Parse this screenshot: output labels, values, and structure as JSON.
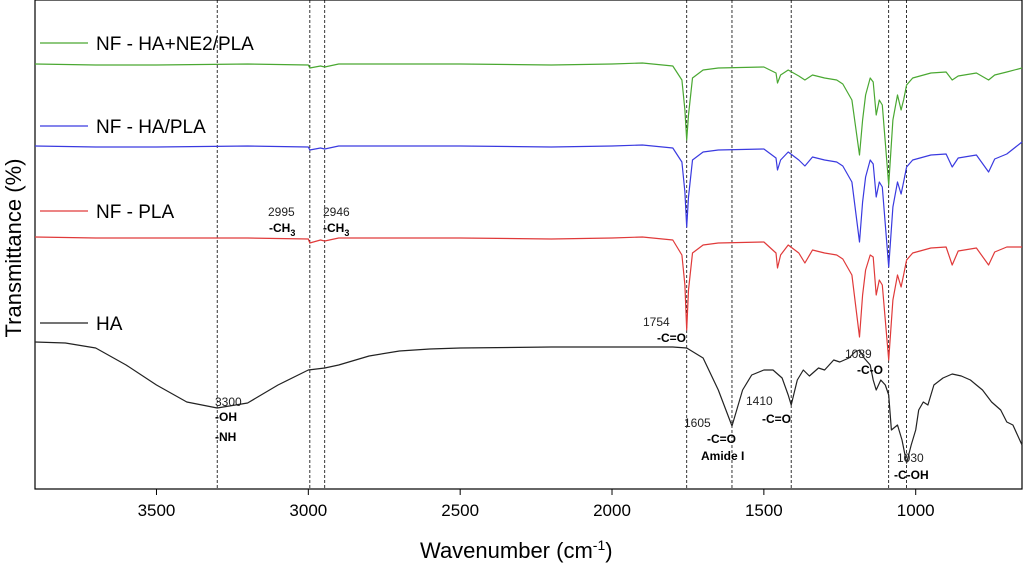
{
  "chart_data": {
    "type": "line",
    "title": "",
    "xlabel": "Wavenumber (cm",
    "xlabel_sup": "-1",
    "xlabel_end": ")",
    "ylabel": "Transmittance (%)",
    "xlim": [
      3900,
      650
    ],
    "x_ticks": [
      {
        "value": 3500,
        "label": "3500"
      },
      {
        "value": 3000,
        "label": "3000"
      },
      {
        "value": 2500,
        "label": "2500"
      },
      {
        "value": 2000,
        "label": "2000"
      },
      {
        "value": 1500,
        "label": "1500"
      },
      {
        "value": 1000,
        "label": "1000"
      }
    ],
    "reference_lines": [
      3300,
      2995,
      2946,
      1754,
      1605,
      1410,
      1089,
      1030
    ],
    "series": [
      {
        "name": "NF - HA+NE2/PLA",
        "color": "#4aa832",
        "offset": 0,
        "points": [
          [
            3900,
            64
          ],
          [
            3700,
            65
          ],
          [
            3500,
            65
          ],
          [
            3200,
            64
          ],
          [
            3000,
            65
          ],
          [
            2995,
            68
          ],
          [
            2960,
            66
          ],
          [
            2946,
            67
          ],
          [
            2900,
            64
          ],
          [
            2500,
            64
          ],
          [
            2200,
            65
          ],
          [
            2000,
            64
          ],
          [
            1900,
            63
          ],
          [
            1800,
            66
          ],
          [
            1770,
            80
          ],
          [
            1760,
            110
          ],
          [
            1754,
            140
          ],
          [
            1748,
            115
          ],
          [
            1735,
            78
          ],
          [
            1700,
            70
          ],
          [
            1650,
            68
          ],
          [
            1500,
            67
          ],
          [
            1460,
            73
          ],
          [
            1455,
            83
          ],
          [
            1445,
            75
          ],
          [
            1420,
            70
          ],
          [
            1385,
            76
          ],
          [
            1365,
            80
          ],
          [
            1340,
            75
          ],
          [
            1300,
            78
          ],
          [
            1260,
            80
          ],
          [
            1240,
            84
          ],
          [
            1210,
            100
          ],
          [
            1185,
            155
          ],
          [
            1175,
            120
          ],
          [
            1165,
            95
          ],
          [
            1150,
            78
          ],
          [
            1140,
            82
          ],
          [
            1130,
            115
          ],
          [
            1120,
            100
          ],
          [
            1110,
            105
          ],
          [
            1089,
            185
          ],
          [
            1075,
            120
          ],
          [
            1060,
            95
          ],
          [
            1048,
            110
          ],
          [
            1040,
            100
          ],
          [
            1030,
            85
          ],
          [
            1010,
            78
          ],
          [
            950,
            73
          ],
          [
            900,
            72
          ],
          [
            880,
            80
          ],
          [
            860,
            76
          ],
          [
            800,
            73
          ],
          [
            760,
            80
          ],
          [
            740,
            75
          ],
          [
            700,
            72
          ],
          [
            650,
            68
          ]
        ]
      },
      {
        "name": "NF - HA/PLA",
        "color": "#3a3ae0",
        "offset": 82,
        "points": [
          [
            3900,
            64
          ],
          [
            3700,
            65
          ],
          [
            3500,
            65
          ],
          [
            3200,
            64
          ],
          [
            3000,
            65
          ],
          [
            2995,
            68
          ],
          [
            2960,
            66
          ],
          [
            2946,
            67
          ],
          [
            2900,
            64
          ],
          [
            2500,
            64
          ],
          [
            2200,
            65
          ],
          [
            2000,
            64
          ],
          [
            1900,
            63
          ],
          [
            1800,
            66
          ],
          [
            1770,
            80
          ],
          [
            1760,
            110
          ],
          [
            1754,
            145
          ],
          [
            1748,
            115
          ],
          [
            1735,
            78
          ],
          [
            1700,
            70
          ],
          [
            1650,
            68
          ],
          [
            1500,
            67
          ],
          [
            1460,
            76
          ],
          [
            1455,
            88
          ],
          [
            1445,
            78
          ],
          [
            1420,
            70
          ],
          [
            1385,
            78
          ],
          [
            1365,
            84
          ],
          [
            1340,
            75
          ],
          [
            1300,
            78
          ],
          [
            1260,
            80
          ],
          [
            1240,
            84
          ],
          [
            1210,
            100
          ],
          [
            1185,
            160
          ],
          [
            1175,
            120
          ],
          [
            1165,
            95
          ],
          [
            1150,
            78
          ],
          [
            1140,
            82
          ],
          [
            1130,
            115
          ],
          [
            1120,
            100
          ],
          [
            1110,
            105
          ],
          [
            1089,
            185
          ],
          [
            1075,
            125
          ],
          [
            1060,
            100
          ],
          [
            1048,
            112
          ],
          [
            1040,
            100
          ],
          [
            1030,
            85
          ],
          [
            1010,
            78
          ],
          [
            950,
            73
          ],
          [
            900,
            72
          ],
          [
            880,
            85
          ],
          [
            860,
            76
          ],
          [
            800,
            73
          ],
          [
            760,
            90
          ],
          [
            740,
            77
          ],
          [
            700,
            72
          ],
          [
            650,
            60
          ]
        ]
      },
      {
        "name": "NF - PLA",
        "color": "#e03a3a",
        "offset": 175,
        "points": [
          [
            3900,
            62
          ],
          [
            3700,
            63
          ],
          [
            3500,
            63
          ],
          [
            3200,
            63
          ],
          [
            3000,
            64
          ],
          [
            2995,
            68
          ],
          [
            2960,
            65
          ],
          [
            2946,
            66
          ],
          [
            2900,
            63
          ],
          [
            2500,
            63
          ],
          [
            2200,
            64
          ],
          [
            2000,
            63
          ],
          [
            1900,
            62
          ],
          [
            1800,
            65
          ],
          [
            1770,
            80
          ],
          [
            1760,
            110
          ],
          [
            1754,
            155
          ],
          [
            1748,
            115
          ],
          [
            1735,
            78
          ],
          [
            1700,
            70
          ],
          [
            1650,
            68
          ],
          [
            1500,
            67
          ],
          [
            1460,
            78
          ],
          [
            1455,
            93
          ],
          [
            1445,
            80
          ],
          [
            1420,
            70
          ],
          [
            1385,
            78
          ],
          [
            1365,
            88
          ],
          [
            1340,
            75
          ],
          [
            1300,
            78
          ],
          [
            1260,
            80
          ],
          [
            1240,
            84
          ],
          [
            1210,
            100
          ],
          [
            1185,
            162
          ],
          [
            1175,
            120
          ],
          [
            1165,
            95
          ],
          [
            1150,
            80
          ],
          [
            1140,
            82
          ],
          [
            1130,
            120
          ],
          [
            1120,
            105
          ],
          [
            1110,
            110
          ],
          [
            1089,
            185
          ],
          [
            1075,
            125
          ],
          [
            1060,
            100
          ],
          [
            1048,
            112
          ],
          [
            1040,
            100
          ],
          [
            1030,
            85
          ],
          [
            1010,
            78
          ],
          [
            950,
            73
          ],
          [
            900,
            72
          ],
          [
            880,
            90
          ],
          [
            860,
            76
          ],
          [
            800,
            73
          ],
          [
            760,
            90
          ],
          [
            740,
            77
          ],
          [
            700,
            72
          ],
          [
            650,
            72
          ]
        ]
      },
      {
        "name": "HA",
        "color": "#222222",
        "offset": 280,
        "points": [
          [
            3900,
            62
          ],
          [
            3800,
            63
          ],
          [
            3700,
            68
          ],
          [
            3600,
            85
          ],
          [
            3500,
            105
          ],
          [
            3400,
            122
          ],
          [
            3300,
            128
          ],
          [
            3200,
            123
          ],
          [
            3100,
            105
          ],
          [
            3000,
            90
          ],
          [
            2946,
            88
          ],
          [
            2900,
            85
          ],
          [
            2800,
            76
          ],
          [
            2700,
            71
          ],
          [
            2600,
            69
          ],
          [
            2500,
            68
          ],
          [
            2200,
            67
          ],
          [
            2000,
            67
          ],
          [
            1800,
            67
          ],
          [
            1754,
            68
          ],
          [
            1700,
            78
          ],
          [
            1650,
            110
          ],
          [
            1605,
            146
          ],
          [
            1570,
            110
          ],
          [
            1540,
            95
          ],
          [
            1500,
            90
          ],
          [
            1470,
            90
          ],
          [
            1440,
            98
          ],
          [
            1420,
            115
          ],
          [
            1410,
            125
          ],
          [
            1390,
            100
          ],
          [
            1370,
            90
          ],
          [
            1350,
            96
          ],
          [
            1320,
            88
          ],
          [
            1300,
            90
          ],
          [
            1270,
            80
          ],
          [
            1250,
            82
          ],
          [
            1220,
            78
          ],
          [
            1200,
            72
          ],
          [
            1185,
            70
          ],
          [
            1170,
            78
          ],
          [
            1150,
            85
          ],
          [
            1140,
            100
          ],
          [
            1130,
            110
          ],
          [
            1115,
            100
          ],
          [
            1100,
            105
          ],
          [
            1089,
            115
          ],
          [
            1080,
            150
          ],
          [
            1060,
            145
          ],
          [
            1045,
            160
          ],
          [
            1030,
            183
          ],
          [
            1015,
            165
          ],
          [
            1000,
            150
          ],
          [
            990,
            130
          ],
          [
            975,
            122
          ],
          [
            960,
            125
          ],
          [
            940,
            105
          ],
          [
            910,
            98
          ],
          [
            880,
            94
          ],
          [
            850,
            96
          ],
          [
            820,
            100
          ],
          [
            800,
            105
          ],
          [
            780,
            110
          ],
          [
            750,
            122
          ],
          [
            720,
            130
          ],
          [
            700,
            142
          ],
          [
            680,
            145
          ],
          [
            650,
            165
          ]
        ]
      }
    ],
    "annotations": [
      {
        "wavenumber": "3300",
        "groups": [
          "-OH",
          "-NH"
        ]
      },
      {
        "wavenumber": "2995",
        "groups": [
          "-CH",
          "3"
        ]
      },
      {
        "wavenumber": "2946",
        "groups": [
          "-CH",
          "3"
        ]
      },
      {
        "wavenumber": "1754",
        "groups": [
          "-C=O"
        ]
      },
      {
        "wavenumber": "1605",
        "groups": [
          "-C=O",
          "Amide I"
        ]
      },
      {
        "wavenumber": "1410",
        "groups": [
          "-C=O"
        ]
      },
      {
        "wavenumber": "1089",
        "groups": [
          "-C-O"
        ]
      },
      {
        "wavenumber": "1030",
        "groups": [
          "-C-OH"
        ]
      }
    ]
  }
}
